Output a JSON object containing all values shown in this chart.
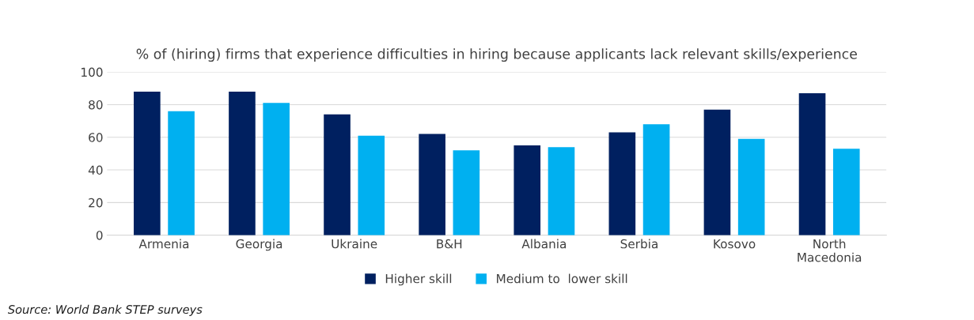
{
  "chart_data": {
    "type": "bar",
    "title": "% of (hiring) firms that experience difficulties in hiring because applicants lack relevant skills/experience",
    "categories": [
      "Armenia",
      "Georgia",
      "Ukraine",
      "B&H",
      "Albania",
      "Serbia",
      "Kosovo",
      "North\nMacedonia"
    ],
    "series": [
      {
        "name": "Higher skill",
        "color": "#002060",
        "values": [
          88,
          88,
          74,
          62,
          55,
          63,
          77,
          87
        ]
      },
      {
        "name": "Medium to  lower skill",
        "color": "#00b0f0",
        "values": [
          76,
          81,
          61,
          52,
          54,
          68,
          59,
          53
        ]
      }
    ],
    "ylim": [
      0,
      100
    ],
    "yticks": [
      0,
      20,
      40,
      60,
      80,
      100
    ],
    "grid": "y",
    "legend": "bottom",
    "annotations": [
      "Source: World Bank STEP surveys"
    ]
  }
}
